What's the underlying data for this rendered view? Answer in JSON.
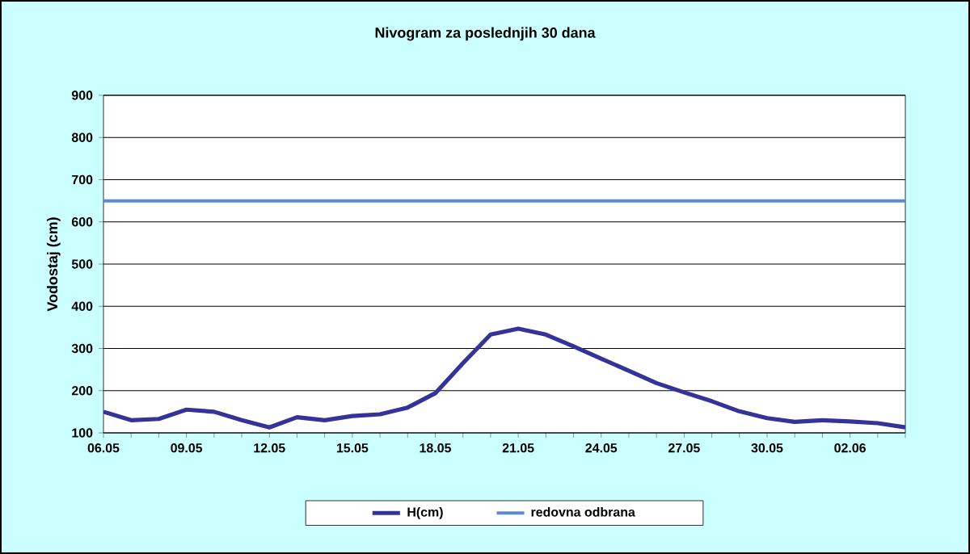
{
  "chart_data": {
    "type": "line",
    "title": "Nivogram za poslednjih 30 dana",
    "ylabel": "Vodostaj (cm)",
    "categories": [
      "06.05",
      null,
      null,
      "09.05",
      null,
      null,
      "12.05",
      null,
      null,
      "15.05",
      null,
      null,
      "18.05",
      null,
      null,
      "21.05",
      null,
      null,
      "24.05",
      null,
      null,
      "27.05",
      null,
      null,
      "30.05",
      null,
      null,
      "02.06",
      null,
      null
    ],
    "series": [
      {
        "name": "H(cm)",
        "color": "#333399",
        "values": [
          150,
          130,
          133,
          155,
          150,
          130,
          113,
          137,
          130,
          140,
          144,
          160,
          194,
          265,
          333,
          347,
          333,
          305,
          276,
          247,
          218,
          196,
          175,
          151,
          135,
          126,
          130,
          127,
          123,
          113
        ]
      },
      {
        "name": "redovna odbrana",
        "color": "#5b8bd5",
        "values": [
          650,
          650,
          650,
          650,
          650,
          650,
          650,
          650,
          650,
          650,
          650,
          650,
          650,
          650,
          650,
          650,
          650,
          650,
          650,
          650,
          650,
          650,
          650,
          650,
          650,
          650,
          650,
          650,
          650,
          650
        ]
      }
    ],
    "ylim": [
      100,
      900
    ],
    "yticks": [
      100,
      200,
      300,
      400,
      500,
      600,
      700,
      800,
      900
    ],
    "grid": "y",
    "legend": "bottom",
    "marker": "none",
    "line_style": "solid"
  }
}
